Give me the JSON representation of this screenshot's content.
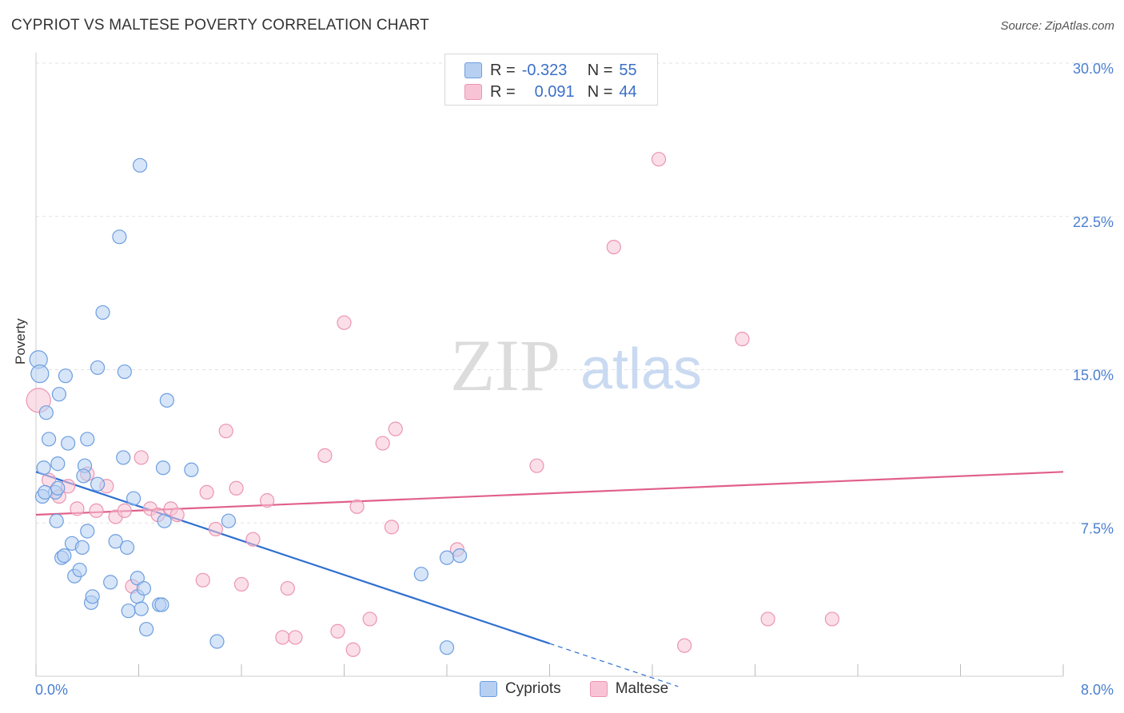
{
  "header": {
    "title": "CYPRIOT VS MALTESE POVERTY CORRELATION CHART",
    "source": "Source: ZipAtlas.com"
  },
  "watermark": {
    "zip": "ZIP",
    "atlas": "atlas"
  },
  "legend": {
    "rows": [
      {
        "r_label": "R =",
        "r_value": "-0.323",
        "n_label": "N =",
        "n_value": "55"
      },
      {
        "r_label": "R =",
        "r_value": "0.091",
        "n_label": "N =",
        "n_value": "44"
      }
    ]
  },
  "bottom_legend": {
    "cypriots": "Cypriots",
    "maltese": "Maltese"
  },
  "colors": {
    "cypriots_fill": "#b7d0f2",
    "cypriots_stroke": "#6d9ee0",
    "cypriots_line": "#2f6fd1",
    "maltese_fill": "#f8c4d5",
    "maltese_stroke": "#ec94b3",
    "maltese_line": "#e0608c",
    "axis_text": "#4a7fd0"
  },
  "chart_data": {
    "type": "scatter",
    "title": "CYPRIOT VS MALTESE POVERTY CORRELATION CHART",
    "xlabel": "",
    "ylabel": "Poverty",
    "xlim": [
      0,
      8
    ],
    "ylim": [
      0,
      30
    ],
    "x_tick_labels": [
      "0.0%",
      "8.0%"
    ],
    "y_ticks": [
      7.5,
      15.0,
      22.5,
      30.0
    ],
    "y_tick_labels": [
      "7.5%",
      "15.0%",
      "22.5%",
      "30.0%"
    ],
    "grid": true,
    "series": [
      {
        "name": "Cypriots",
        "r": -0.323,
        "n": 55,
        "trend": {
          "x_start": 0.0,
          "y_start": 10.0,
          "x_solid_end": 4.0,
          "y_solid_end": 1.6,
          "x_dashed_end": 5.0,
          "y_dashed_end": -0.5
        },
        "points": [
          [
            0.02,
            15.5
          ],
          [
            0.03,
            14.8
          ],
          [
            0.08,
            12.9
          ],
          [
            0.1,
            11.6
          ],
          [
            0.06,
            10.2
          ],
          [
            0.05,
            8.8
          ],
          [
            0.15,
            9.0
          ],
          [
            0.16,
            7.6
          ],
          [
            0.17,
            9.2
          ],
          [
            0.18,
            13.8
          ],
          [
            0.17,
            10.4
          ],
          [
            0.23,
            14.7
          ],
          [
            0.25,
            11.4
          ],
          [
            0.28,
            6.5
          ],
          [
            0.3,
            4.9
          ],
          [
            0.34,
            5.2
          ],
          [
            0.2,
            5.8
          ],
          [
            0.22,
            5.9
          ],
          [
            0.36,
            6.3
          ],
          [
            0.38,
            10.3
          ],
          [
            0.37,
            9.8
          ],
          [
            0.4,
            11.6
          ],
          [
            0.4,
            7.1
          ],
          [
            0.43,
            3.6
          ],
          [
            0.44,
            3.9
          ],
          [
            0.48,
            9.4
          ],
          [
            0.48,
            15.1
          ],
          [
            0.52,
            17.8
          ],
          [
            0.58,
            4.6
          ],
          [
            0.62,
            6.6
          ],
          [
            0.65,
            21.5
          ],
          [
            0.68,
            10.7
          ],
          [
            0.69,
            14.9
          ],
          [
            0.71,
            6.3
          ],
          [
            0.72,
            3.2
          ],
          [
            0.76,
            8.7
          ],
          [
            0.79,
            4.8
          ],
          [
            0.79,
            3.9
          ],
          [
            0.81,
            25.0
          ],
          [
            0.82,
            3.3
          ],
          [
            0.84,
            4.3
          ],
          [
            0.86,
            2.3
          ],
          [
            0.96,
            3.5
          ],
          [
            0.99,
            10.2
          ],
          [
            1.0,
            7.6
          ],
          [
            1.02,
            13.5
          ],
          [
            1.21,
            10.1
          ],
          [
            1.41,
            1.7
          ],
          [
            1.5,
            7.6
          ],
          [
            3.0,
            5.0
          ],
          [
            3.2,
            5.8
          ],
          [
            3.2,
            1.4
          ],
          [
            3.3,
            5.9
          ],
          [
            0.98,
            3.5
          ],
          [
            0.07,
            9.0
          ]
        ]
      },
      {
        "name": "Maltese",
        "r": 0.091,
        "n": 44,
        "trend": {
          "x_start": 0.0,
          "y_start": 7.9,
          "x_end": 8.0,
          "y_end": 10.0
        },
        "points": [
          [
            0.02,
            13.5
          ],
          [
            0.1,
            9.6
          ],
          [
            0.18,
            8.8
          ],
          [
            0.25,
            9.3
          ],
          [
            0.32,
            8.2
          ],
          [
            0.4,
            9.9
          ],
          [
            0.47,
            8.1
          ],
          [
            0.55,
            9.3
          ],
          [
            0.62,
            7.8
          ],
          [
            0.69,
            8.1
          ],
          [
            0.75,
            4.4
          ],
          [
            0.82,
            10.7
          ],
          [
            0.89,
            8.2
          ],
          [
            0.95,
            7.9
          ],
          [
            1.05,
            8.2
          ],
          [
            1.1,
            7.9
          ],
          [
            1.3,
            4.7
          ],
          [
            1.33,
            9.0
          ],
          [
            1.4,
            7.2
          ],
          [
            1.48,
            12.0
          ],
          [
            1.56,
            9.2
          ],
          [
            1.6,
            4.5
          ],
          [
            1.69,
            6.7
          ],
          [
            1.8,
            8.6
          ],
          [
            1.92,
            1.9
          ],
          [
            1.96,
            4.3
          ],
          [
            2.02,
            1.9
          ],
          [
            2.25,
            10.8
          ],
          [
            2.35,
            2.2
          ],
          [
            2.4,
            17.3
          ],
          [
            2.47,
            1.3
          ],
          [
            2.5,
            8.3
          ],
          [
            2.6,
            2.8
          ],
          [
            2.7,
            11.4
          ],
          [
            2.77,
            7.3
          ],
          [
            2.8,
            12.1
          ],
          [
            3.28,
            6.2
          ],
          [
            3.9,
            10.3
          ],
          [
            4.5,
            21.0
          ],
          [
            4.85,
            25.3
          ],
          [
            5.05,
            1.5
          ],
          [
            5.5,
            16.5
          ],
          [
            5.7,
            2.8
          ],
          [
            6.2,
            2.8
          ]
        ]
      }
    ]
  }
}
